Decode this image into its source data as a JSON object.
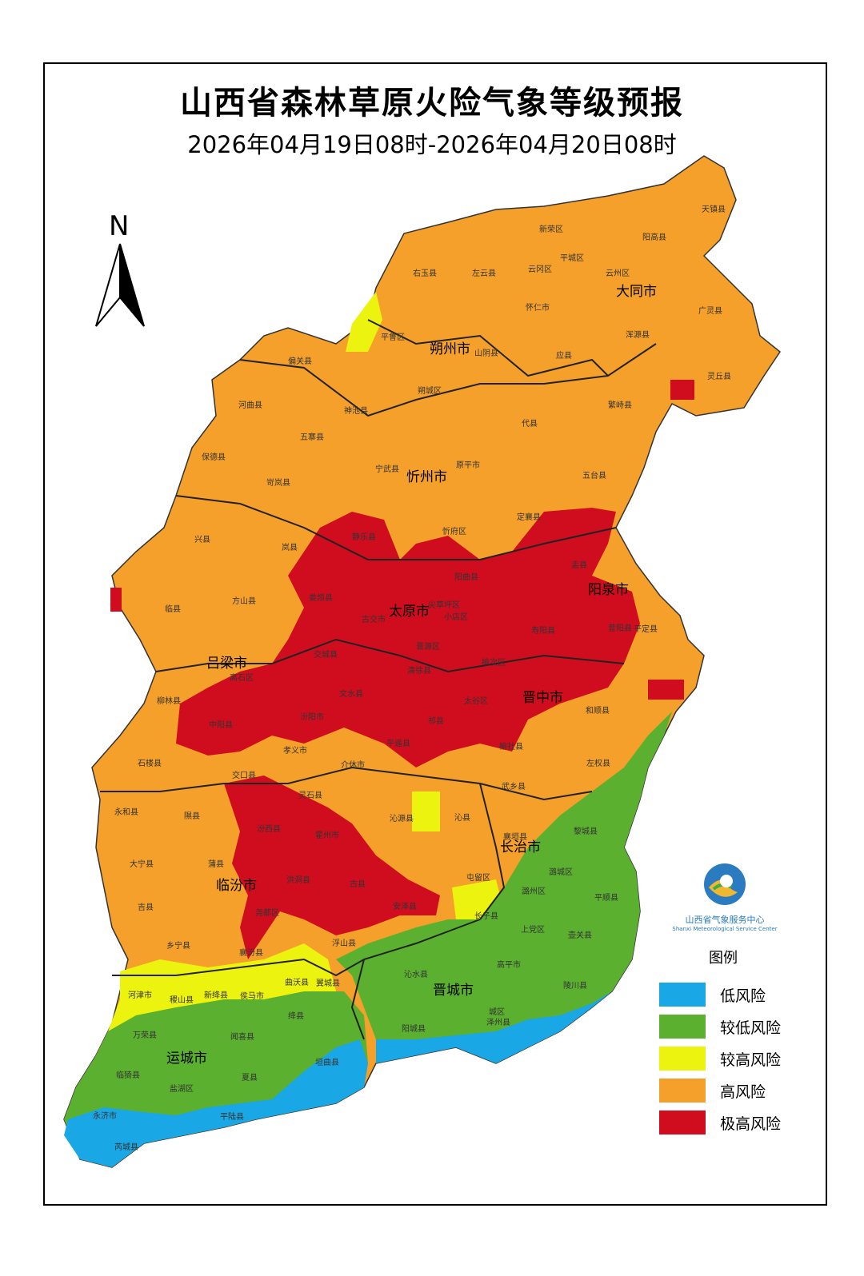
{
  "title": "山西省森林草原火险气象等级预报",
  "subtitle": "2026年04月19日08时-2026年04月20日08时",
  "north_label": "N",
  "legend": {
    "title": "图例",
    "items": [
      {
        "label": "低风险",
        "color": "#1aa7e6"
      },
      {
        "label": "较低风险",
        "color": "#5bb030"
      },
      {
        "label": "较高风险",
        "color": "#ecf30f"
      },
      {
        "label": "高风险",
        "color": "#f5a02a"
      },
      {
        "label": "极高风险",
        "color": "#cf0d1f"
      }
    ]
  },
  "logo": {
    "cn": "山西省气象服务中心",
    "en": "Shanxi Meteorological Service Center"
  },
  "cities": [
    "大同市",
    "朔州市",
    "忻州市",
    "太原市",
    "阳泉市",
    "吕梁市",
    "晋中市",
    "长治市",
    "临汾市",
    "晋城市",
    "运城市"
  ],
  "counties": [
    "天镇县",
    "新荣区",
    "阳高县",
    "右玉县",
    "左云县",
    "云冈区",
    "平城区",
    "云州区",
    "大同市",
    "怀仁市",
    "广灵县",
    "平鲁区",
    "山阴县",
    "应县",
    "浑源县",
    "灵丘县",
    "偏关县",
    "朔城区",
    "河曲县",
    "神池县",
    "代县",
    "繁峙县",
    "五寨县",
    "保德县",
    "宁武县",
    "原平市",
    "五台县",
    "岢岚县",
    "静乐县",
    "忻府区",
    "盂县",
    "兴县",
    "岚县",
    "定襄县",
    "阳曲县",
    "寿阳县",
    "平定县",
    "临县",
    "方山县",
    "娄烦县",
    "古交市",
    "尖草坪区",
    "晋源区",
    "小店区",
    "清徐县",
    "榆次区",
    "昔阳县",
    "交城县",
    "离石区",
    "文水县",
    "汾阳市",
    "太谷区",
    "祁县",
    "平遥县",
    "介休市",
    "孝义市",
    "和顺县",
    "柳林县",
    "中阳县",
    "石楼县",
    "交口县",
    "灵石县",
    "榆社县",
    "左权县",
    "武乡县",
    "沁源县",
    "沁县",
    "襄垣县",
    "黎城县",
    "永和县",
    "隰县",
    "汾西县",
    "霍州市",
    "屯留区",
    "潞城区",
    "潞州区",
    "平顺县",
    "大宁县",
    "蒲县",
    "洪洞县",
    "古县",
    "安泽县",
    "长子县",
    "壶关县",
    "上党区",
    "吉县",
    "尧都区",
    "乡宁县",
    "襄汾县",
    "浮山县",
    "高平市",
    "陵川县",
    "沁水县",
    "翼城县",
    "曲沃县",
    "侯马市",
    "河津市",
    "稷山县",
    "新绛县",
    "绛县",
    "万荣县",
    "闻喜县",
    "阳城县",
    "城区",
    "泽州县",
    "临猗县",
    "盐湖区",
    "夏县",
    "垣曲县",
    "永济市",
    "芮城县",
    "平陆县"
  ]
}
